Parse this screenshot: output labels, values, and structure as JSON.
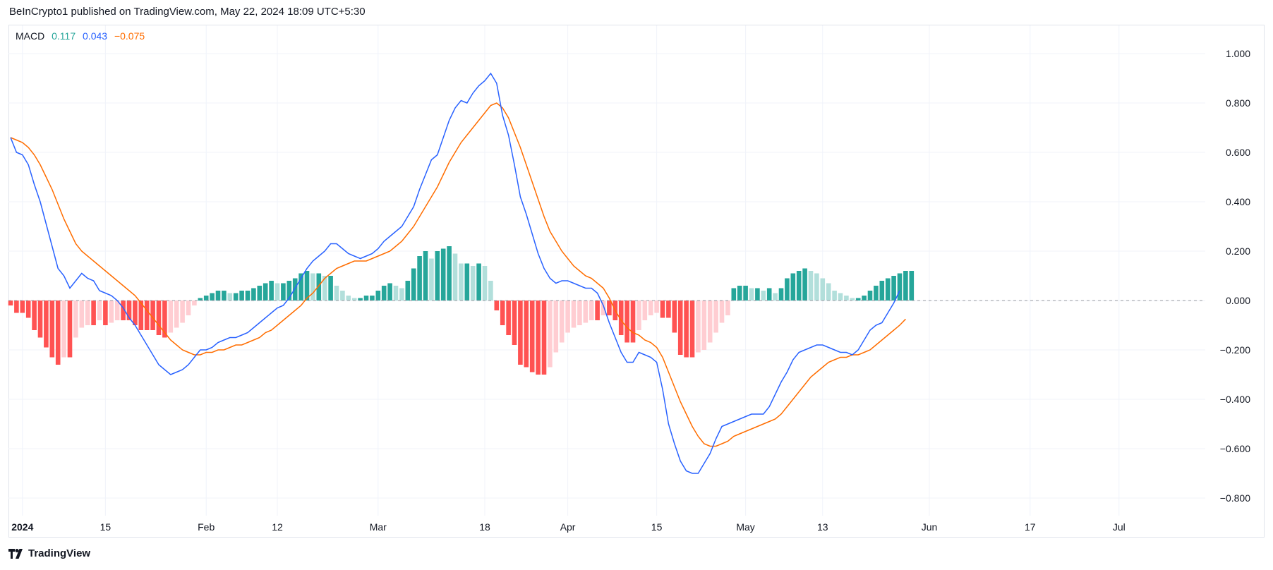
{
  "header": {
    "published": "BeInCrypto1 published on TradingView.com, May 22, 2024 18:09 UTC+5:30"
  },
  "legend": {
    "name": "MACD",
    "histogram_value": "0.117",
    "macd_value": "0.043",
    "signal_value": "−0.075"
  },
  "footer": {
    "brand": "TradingView"
  },
  "colors": {
    "macd": "#2962ff",
    "signal": "#ff6d00",
    "hist_pos_strong": "#26a69a",
    "hist_pos_weak": "#b2dfdb",
    "hist_neg_strong": "#ff5252",
    "hist_neg_weak": "#ffcdd2",
    "grid": "#f0f3fa",
    "zero": "#9598a1"
  },
  "chart_data": {
    "type": "line",
    "title": "MACD",
    "ylim": [
      -0.85,
      1.1
    ],
    "y_ticks": [
      "1.000",
      "0.800",
      "0.600",
      "0.400",
      "0.200",
      "0.000",
      "−0.200",
      "−0.400",
      "−0.600",
      "−0.800"
    ],
    "y_tick_values": [
      1.0,
      0.8,
      0.6,
      0.4,
      0.2,
      0.0,
      -0.2,
      -0.4,
      -0.6,
      -0.8
    ],
    "x_ticks": [
      {
        "label": "2024",
        "bar": 2,
        "bold": true
      },
      {
        "label": "15",
        "bar": 16
      },
      {
        "label": "Feb",
        "bar": 33
      },
      {
        "label": "12",
        "bar": 45
      },
      {
        "label": "Mar",
        "bar": 62
      },
      {
        "label": "18",
        "bar": 80
      },
      {
        "label": "Apr",
        "bar": 94
      },
      {
        "label": "15",
        "bar": 109
      },
      {
        "label": "May",
        "bar": 124
      },
      {
        "label": "13",
        "bar": 137
      },
      {
        "label": "Jun",
        "bar": 155
      },
      {
        "label": "17",
        "bar": 172
      },
      {
        "label": "Jul",
        "bar": 187
      }
    ],
    "total_bars": 190,
    "series": [
      {
        "name": "MACD",
        "values": [
          0.66,
          0.6,
          0.59,
          0.55,
          0.47,
          0.4,
          0.31,
          0.22,
          0.13,
          0.1,
          0.05,
          0.08,
          0.11,
          0.09,
          0.08,
          0.04,
          0.03,
          0.02,
          0.0,
          -0.03,
          -0.07,
          -0.1,
          -0.14,
          -0.18,
          -0.22,
          -0.26,
          -0.28,
          -0.3,
          -0.29,
          -0.28,
          -0.26,
          -0.23,
          -0.2,
          -0.2,
          -0.19,
          -0.17,
          -0.16,
          -0.15,
          -0.15,
          -0.14,
          -0.13,
          -0.11,
          -0.09,
          -0.07,
          -0.05,
          -0.03,
          -0.02,
          0.01,
          0.05,
          0.09,
          0.13,
          0.16,
          0.18,
          0.2,
          0.23,
          0.23,
          0.21,
          0.19,
          0.18,
          0.17,
          0.18,
          0.19,
          0.21,
          0.24,
          0.26,
          0.28,
          0.3,
          0.34,
          0.38,
          0.45,
          0.51,
          0.57,
          0.59,
          0.66,
          0.73,
          0.78,
          0.81,
          0.8,
          0.84,
          0.87,
          0.89,
          0.92,
          0.88,
          0.75,
          0.67,
          0.55,
          0.42,
          0.35,
          0.27,
          0.19,
          0.13,
          0.09,
          0.07,
          0.08,
          0.08,
          0.07,
          0.06,
          0.05,
          0.05,
          0.03,
          -0.02,
          -0.09,
          -0.15,
          -0.21,
          -0.25,
          -0.25,
          -0.21,
          -0.22,
          -0.23,
          -0.25,
          -0.36,
          -0.5,
          -0.58,
          -0.65,
          -0.69,
          -0.7,
          -0.7,
          -0.66,
          -0.62,
          -0.56,
          -0.51,
          -0.5,
          -0.49,
          -0.48,
          -0.47,
          -0.46,
          -0.46,
          -0.46,
          -0.43,
          -0.38,
          -0.33,
          -0.29,
          -0.24,
          -0.21,
          -0.2,
          -0.19,
          -0.18,
          -0.18,
          -0.19,
          -0.2,
          -0.21,
          -0.21,
          -0.22,
          -0.2,
          -0.16,
          -0.12,
          -0.1,
          -0.09,
          -0.05,
          -0.01,
          0.04
        ]
      },
      {
        "name": "Signal",
        "values": [
          0.66,
          0.65,
          0.64,
          0.62,
          0.59,
          0.55,
          0.5,
          0.45,
          0.39,
          0.33,
          0.28,
          0.23,
          0.2,
          0.18,
          0.16,
          0.14,
          0.12,
          0.1,
          0.08,
          0.06,
          0.04,
          0.02,
          -0.01,
          -0.04,
          -0.07,
          -0.1,
          -0.13,
          -0.16,
          -0.18,
          -0.2,
          -0.21,
          -0.22,
          -0.22,
          -0.21,
          -0.21,
          -0.2,
          -0.2,
          -0.19,
          -0.18,
          -0.18,
          -0.17,
          -0.16,
          -0.15,
          -0.13,
          -0.12,
          -0.1,
          -0.08,
          -0.06,
          -0.04,
          -0.02,
          0.01,
          0.03,
          0.06,
          0.09,
          0.11,
          0.13,
          0.14,
          0.15,
          0.16,
          0.16,
          0.16,
          0.17,
          0.18,
          0.19,
          0.2,
          0.22,
          0.24,
          0.27,
          0.3,
          0.34,
          0.38,
          0.42,
          0.46,
          0.51,
          0.56,
          0.6,
          0.64,
          0.67,
          0.7,
          0.73,
          0.76,
          0.79,
          0.8,
          0.78,
          0.74,
          0.68,
          0.62,
          0.55,
          0.48,
          0.41,
          0.34,
          0.28,
          0.24,
          0.2,
          0.17,
          0.14,
          0.12,
          0.1,
          0.09,
          0.07,
          0.05,
          0.01,
          -0.04,
          -0.08,
          -0.11,
          -0.13,
          -0.14,
          -0.16,
          -0.17,
          -0.19,
          -0.23,
          -0.29,
          -0.35,
          -0.41,
          -0.46,
          -0.51,
          -0.55,
          -0.58,
          -0.59,
          -0.59,
          -0.58,
          -0.57,
          -0.55,
          -0.54,
          -0.53,
          -0.52,
          -0.51,
          -0.5,
          -0.49,
          -0.48,
          -0.46,
          -0.43,
          -0.4,
          -0.37,
          -0.34,
          -0.31,
          -0.29,
          -0.27,
          -0.25,
          -0.24,
          -0.23,
          -0.23,
          -0.22,
          -0.22,
          -0.21,
          -0.2,
          -0.18,
          -0.16,
          -0.14,
          -0.12,
          -0.1,
          -0.075
        ]
      },
      {
        "name": "Histogram",
        "values": [
          -0.02,
          -0.05,
          -0.05,
          -0.07,
          -0.12,
          -0.15,
          -0.19,
          -0.23,
          -0.26,
          -0.23,
          -0.23,
          -0.15,
          -0.11,
          -0.1,
          -0.1,
          -0.08,
          -0.1,
          -0.09,
          -0.08,
          -0.08,
          -0.08,
          -0.1,
          -0.12,
          -0.12,
          -0.12,
          -0.14,
          -0.15,
          -0.13,
          -0.11,
          -0.09,
          -0.06,
          -0.02,
          0.01,
          0.02,
          0.03,
          0.04,
          0.04,
          0.03,
          0.03,
          0.04,
          0.04,
          0.05,
          0.06,
          0.07,
          0.08,
          0.07,
          0.07,
          0.08,
          0.09,
          0.11,
          0.12,
          0.11,
          0.11,
          0.1,
          0.1,
          0.06,
          0.04,
          0.02,
          0.01,
          0.01,
          0.02,
          0.02,
          0.04,
          0.06,
          0.07,
          0.06,
          0.05,
          0.08,
          0.13,
          0.18,
          0.2,
          0.17,
          0.2,
          0.21,
          0.22,
          0.19,
          0.15,
          0.15,
          0.14,
          0.15,
          0.14,
          0.08,
          -0.04,
          -0.1,
          -0.14,
          -0.18,
          -0.26,
          -0.27,
          -0.29,
          -0.3,
          -0.3,
          -0.27,
          -0.21,
          -0.17,
          -0.13,
          -0.11,
          -0.1,
          -0.09,
          -0.08,
          -0.08,
          -0.06,
          -0.06,
          -0.08,
          -0.14,
          -0.17,
          -0.17,
          -0.12,
          -0.08,
          -0.06,
          -0.05,
          -0.07,
          -0.07,
          -0.13,
          -0.22,
          -0.23,
          -0.23,
          -0.21,
          -0.2,
          -0.17,
          -0.13,
          -0.09,
          -0.06,
          0.05,
          0.06,
          0.06,
          0.05,
          0.05,
          0.04,
          0.05,
          0.03,
          0.05,
          0.09,
          0.11,
          0.12,
          0.13,
          0.12,
          0.11,
          0.09,
          0.07,
          0.04,
          0.03,
          0.02,
          0.01,
          0.01,
          0.02,
          0.04,
          0.06,
          0.08,
          0.09,
          0.1,
          0.11,
          0.12,
          0.12
        ]
      }
    ]
  }
}
